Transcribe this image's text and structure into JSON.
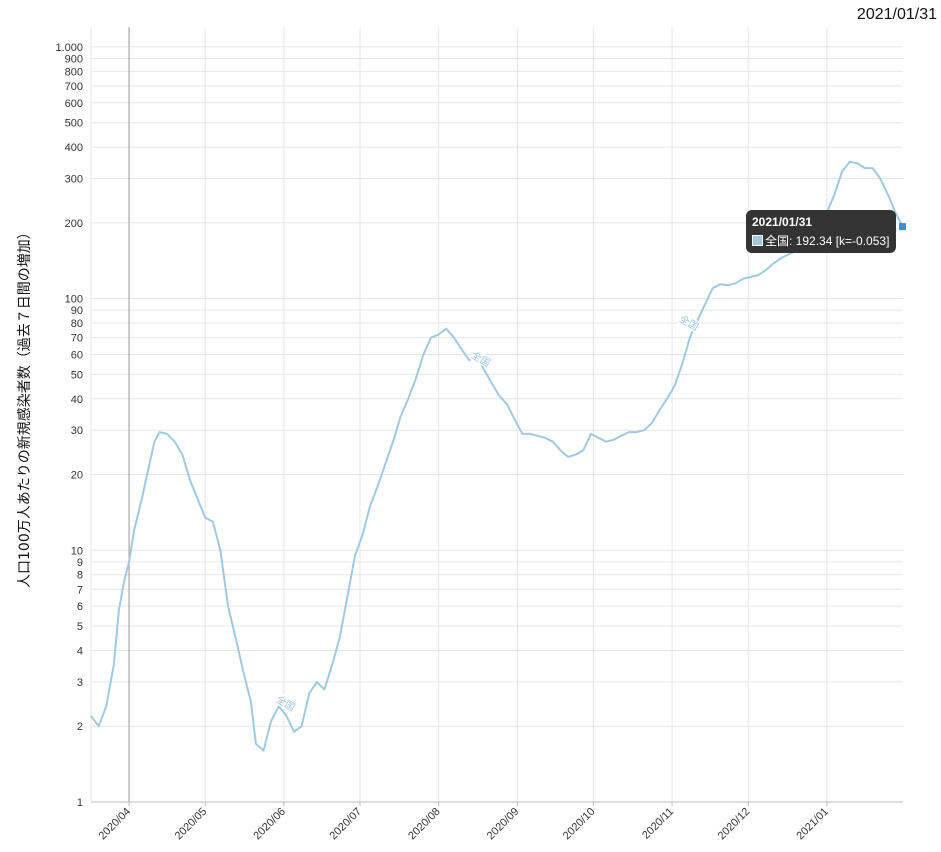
{
  "header": {
    "date": "2021/01/31"
  },
  "tooltip": {
    "title": "2021/01/31",
    "series": "全国",
    "text": "全国: 192.34 [k=-0.053]"
  },
  "chart_data": {
    "type": "line",
    "ylabel": "人口100万人あたりの新規感染者数（過去７日間の増加）",
    "yscale": "log",
    "ylim": [
      1,
      1200
    ],
    "y_ticks": [
      1,
      2,
      3,
      4,
      5,
      6,
      7,
      8,
      9,
      10,
      20,
      30,
      40,
      50,
      60,
      70,
      80,
      90,
      100,
      200,
      300,
      400,
      500,
      600,
      700,
      800,
      900,
      1000
    ],
    "y_tick_labels": [
      "1",
      "2",
      "3",
      "4",
      "5",
      "6",
      "7",
      "8",
      "9",
      "10",
      "20",
      "30",
      "40",
      "50",
      "60",
      "70",
      "80",
      "90",
      "100",
      "200",
      "300",
      "400",
      "500",
      "600",
      "700",
      "800",
      "900",
      "1.000"
    ],
    "x_start": "2020-03-17",
    "x_end": "2021-01-31",
    "x_ticks": [
      "2020-04-01",
      "2020-05-01",
      "2020-06-01",
      "2020-07-01",
      "2020-08-01",
      "2020-09-01",
      "2020-10-01",
      "2020-11-01",
      "2020-12-01",
      "2021-01-01"
    ],
    "x_tick_labels": [
      "2020/04",
      "2020/05",
      "2020/06",
      "2020/07",
      "2020/08",
      "2020/09",
      "2020/10",
      "2020/11",
      "2020/12",
      "2021/01"
    ],
    "marker_line_date": "2020-04-01",
    "series": [
      {
        "name": "全国",
        "color": "#9ecae1",
        "points": [
          [
            "2020-03-17",
            2.2
          ],
          [
            "2020-03-20",
            2.0
          ],
          [
            "2020-03-23",
            2.4
          ],
          [
            "2020-03-26",
            3.5
          ],
          [
            "2020-03-28",
            5.8
          ],
          [
            "2020-03-30",
            7.5
          ],
          [
            "2020-04-01",
            9.0
          ],
          [
            "2020-04-03",
            12.0
          ],
          [
            "2020-04-06",
            16.0
          ],
          [
            "2020-04-09",
            22.0
          ],
          [
            "2020-04-11",
            27.0
          ],
          [
            "2020-04-13",
            29.5
          ],
          [
            "2020-04-16",
            29.0
          ],
          [
            "2020-04-19",
            27.0
          ],
          [
            "2020-04-22",
            24.0
          ],
          [
            "2020-04-25",
            19.0
          ],
          [
            "2020-04-28",
            16.0
          ],
          [
            "2020-05-01",
            13.5
          ],
          [
            "2020-05-04",
            13.0
          ],
          [
            "2020-05-07",
            10.0
          ],
          [
            "2020-05-10",
            6.0
          ],
          [
            "2020-05-13",
            4.5
          ],
          [
            "2020-05-16",
            3.3
          ],
          [
            "2020-05-19",
            2.5
          ],
          [
            "2020-05-21",
            1.7
          ],
          [
            "2020-05-24",
            1.6
          ],
          [
            "2020-05-27",
            2.1
          ],
          [
            "2020-05-30",
            2.4
          ],
          [
            "2020-06-02",
            2.2
          ],
          [
            "2020-06-05",
            1.9
          ],
          [
            "2020-06-08",
            2.0
          ],
          [
            "2020-06-11",
            2.7
          ],
          [
            "2020-06-14",
            3.0
          ],
          [
            "2020-06-17",
            2.8
          ],
          [
            "2020-06-20",
            3.5
          ],
          [
            "2020-06-23",
            4.5
          ],
          [
            "2020-06-26",
            6.5
          ],
          [
            "2020-06-29",
            9.5
          ],
          [
            "2020-07-02",
            11.5
          ],
          [
            "2020-07-05",
            15.0
          ],
          [
            "2020-07-08",
            18.0
          ],
          [
            "2020-07-11",
            22.0
          ],
          [
            "2020-07-14",
            27.0
          ],
          [
            "2020-07-17",
            34.0
          ],
          [
            "2020-07-20",
            40.0
          ],
          [
            "2020-07-23",
            48.0
          ],
          [
            "2020-07-26",
            60.0
          ],
          [
            "2020-07-29",
            70.0
          ],
          [
            "2020-08-01",
            72.0
          ],
          [
            "2020-08-04",
            76.0
          ],
          [
            "2020-08-07",
            70.0
          ],
          [
            "2020-08-10",
            63.0
          ],
          [
            "2020-08-13",
            57.0
          ],
          [
            "2020-08-16",
            59.0
          ],
          [
            "2020-08-19",
            52.0
          ],
          [
            "2020-08-22",
            46.0
          ],
          [
            "2020-08-25",
            41.0
          ],
          [
            "2020-08-28",
            38.0
          ],
          [
            "2020-08-31",
            33.0
          ],
          [
            "2020-09-03",
            29.0
          ],
          [
            "2020-09-06",
            29.0
          ],
          [
            "2020-09-09",
            28.5
          ],
          [
            "2020-09-12",
            28.0
          ],
          [
            "2020-09-15",
            27.0
          ],
          [
            "2020-09-18",
            25.0
          ],
          [
            "2020-09-21",
            23.5
          ],
          [
            "2020-09-24",
            24.0
          ],
          [
            "2020-09-27",
            25.0
          ],
          [
            "2020-09-30",
            29.0
          ],
          [
            "2020-10-03",
            28.0
          ],
          [
            "2020-10-06",
            27.0
          ],
          [
            "2020-10-09",
            27.5
          ],
          [
            "2020-10-12",
            28.5
          ],
          [
            "2020-10-15",
            29.5
          ],
          [
            "2020-10-18",
            29.5
          ],
          [
            "2020-10-21",
            30.0
          ],
          [
            "2020-10-24",
            32.0
          ],
          [
            "2020-10-27",
            36.0
          ],
          [
            "2020-10-30",
            40.0
          ],
          [
            "2020-11-02",
            45.0
          ],
          [
            "2020-11-05",
            55.0
          ],
          [
            "2020-11-08",
            70.0
          ],
          [
            "2020-11-11",
            82.0
          ],
          [
            "2020-11-14",
            95.0
          ],
          [
            "2020-11-17",
            110.0
          ],
          [
            "2020-11-20",
            114.0
          ],
          [
            "2020-11-23",
            113.0
          ],
          [
            "2020-11-26",
            115.0
          ],
          [
            "2020-11-29",
            120.0
          ],
          [
            "2020-12-02",
            122.0
          ],
          [
            "2020-12-05",
            124.0
          ],
          [
            "2020-12-08",
            130.0
          ],
          [
            "2020-12-11",
            138.0
          ],
          [
            "2020-12-14",
            145.0
          ],
          [
            "2020-12-17",
            150.0
          ],
          [
            "2020-12-20",
            155.0
          ],
          [
            "2020-12-23",
            165.0
          ],
          [
            "2020-12-26",
            180.0
          ],
          [
            "2020-12-29",
            200.0
          ],
          [
            "2021-01-01",
            220.0
          ],
          [
            "2021-01-04",
            260.0
          ],
          [
            "2021-01-07",
            320.0
          ],
          [
            "2021-01-10",
            350.0
          ],
          [
            "2021-01-13",
            345.0
          ],
          [
            "2021-01-16",
            330.0
          ],
          [
            "2021-01-19",
            330.0
          ],
          [
            "2021-01-22",
            300.0
          ],
          [
            "2021-01-25",
            260.0
          ],
          [
            "2021-01-28",
            220.0
          ],
          [
            "2021-01-31",
            192.34
          ]
        ]
      }
    ],
    "line_labels": [
      {
        "text": "全国",
        "date": "2020-06-01",
        "value": 2.4
      },
      {
        "text": "全国",
        "date": "2020-08-17",
        "value": 56.0
      },
      {
        "text": "全国",
        "date": "2020-11-07",
        "value": 78.0
      }
    ],
    "grid": true
  }
}
